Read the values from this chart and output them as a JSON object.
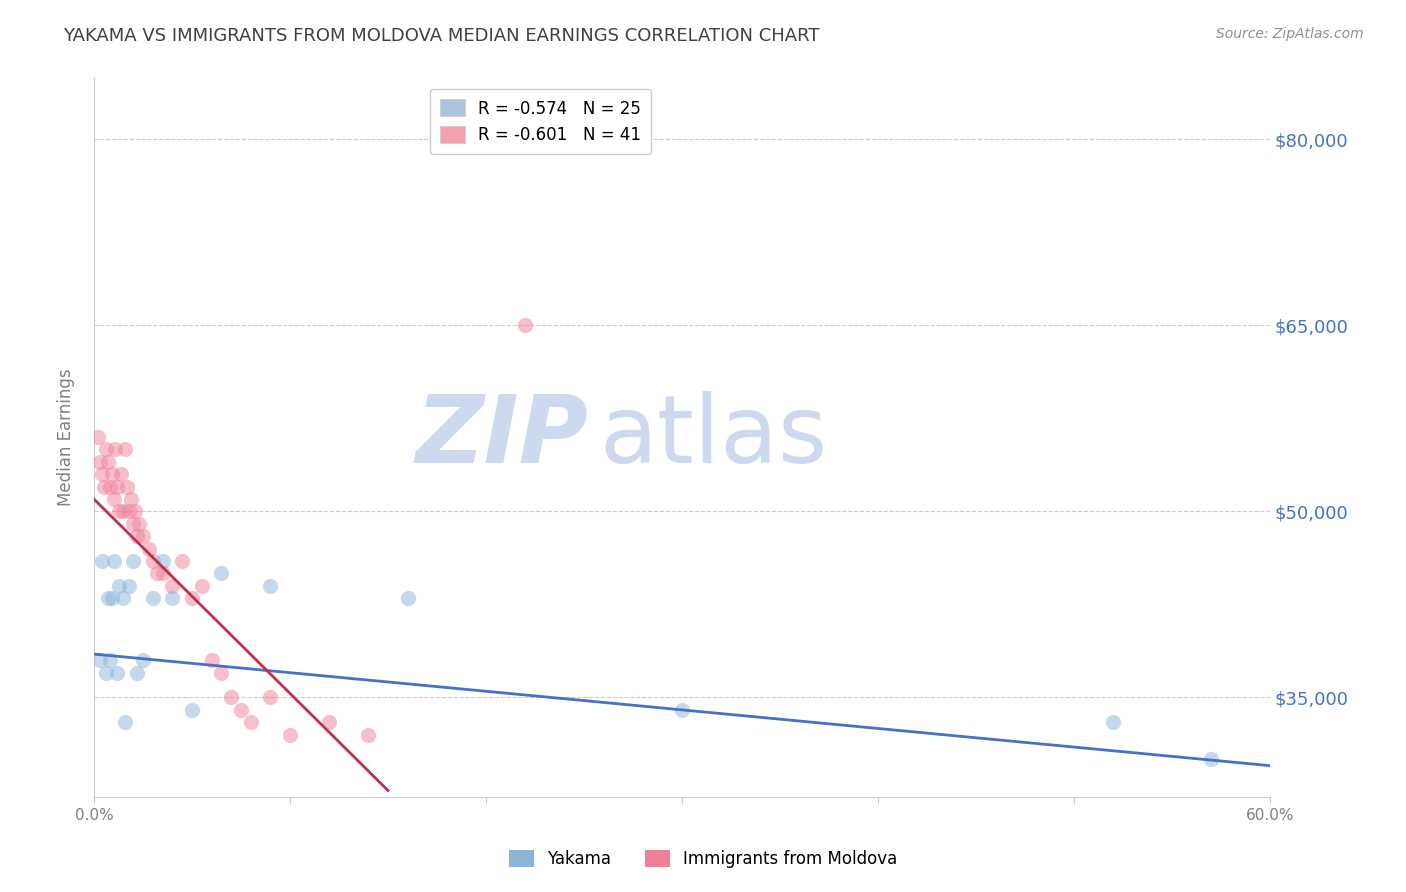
{
  "title": "YAKAMA VS IMMIGRANTS FROM MOLDOVA MEDIAN EARNINGS CORRELATION CHART",
  "source": "Source: ZipAtlas.com",
  "ylabel": "Median Earnings",
  "yticks": [
    35000,
    50000,
    65000,
    80000
  ],
  "ytick_labels": [
    "$35,000",
    "$50,000",
    "$65,000",
    "$80,000"
  ],
  "xlim": [
    0.0,
    0.6
  ],
  "ylim": [
    27000,
    85000
  ],
  "xticks": [
    0.0,
    0.1,
    0.2,
    0.3,
    0.4,
    0.5,
    0.6
  ],
  "legend_entries": [
    {
      "label": "R = -0.574   N = 25",
      "color": "#aac4e0"
    },
    {
      "label": "R = -0.601   N = 41",
      "color": "#f4a0b0"
    }
  ],
  "yakama_color": "#8ab4d8",
  "moldova_color": "#f08098",
  "yakama_line_color": "#4472c4",
  "moldova_line_color": "#c0304a",
  "watermark_zip": "ZIP",
  "watermark_atlas": "atlas",
  "watermark_color": "#ccd9ee",
  "background_color": "#ffffff",
  "grid_color": "#cccccc",
  "title_color": "#404040",
  "source_color": "#909090",
  "axis_label_color": "#808080",
  "right_tick_color": "#4472c4",
  "yakama_x": [
    0.003,
    0.004,
    0.006,
    0.007,
    0.008,
    0.009,
    0.01,
    0.012,
    0.013,
    0.015,
    0.016,
    0.018,
    0.02,
    0.022,
    0.025,
    0.03,
    0.035,
    0.04,
    0.05,
    0.065,
    0.09,
    0.16,
    0.3,
    0.52,
    0.57
  ],
  "yakama_y": [
    38000,
    46000,
    37000,
    43000,
    38000,
    43000,
    46000,
    37000,
    44000,
    43000,
    33000,
    44000,
    46000,
    37000,
    38000,
    43000,
    46000,
    43000,
    34000,
    45000,
    44000,
    43000,
    34000,
    33000,
    30000
  ],
  "moldova_x": [
    0.002,
    0.003,
    0.004,
    0.005,
    0.006,
    0.007,
    0.008,
    0.009,
    0.01,
    0.011,
    0.012,
    0.013,
    0.014,
    0.015,
    0.016,
    0.017,
    0.018,
    0.019,
    0.02,
    0.021,
    0.022,
    0.023,
    0.025,
    0.028,
    0.03,
    0.032,
    0.035,
    0.04,
    0.045,
    0.05,
    0.055,
    0.06,
    0.065,
    0.07,
    0.075,
    0.08,
    0.09,
    0.1,
    0.12,
    0.14,
    0.22
  ],
  "moldova_y": [
    56000,
    54000,
    53000,
    52000,
    55000,
    54000,
    52000,
    53000,
    51000,
    55000,
    52000,
    50000,
    53000,
    50000,
    55000,
    52000,
    50000,
    51000,
    49000,
    50000,
    48000,
    49000,
    48000,
    47000,
    46000,
    45000,
    45000,
    44000,
    46000,
    43000,
    44000,
    38000,
    37000,
    35000,
    34000,
    33000,
    35000,
    32000,
    33000,
    32000,
    65000
  ],
  "marker_size": 120,
  "marker_alpha": 0.5,
  "yakama_line_x": [
    0.0,
    0.6
  ],
  "yakama_line_y": [
    38500,
    29500
  ],
  "moldova_line_x": [
    0.0,
    0.15
  ],
  "moldova_line_y": [
    51000,
    27500
  ]
}
